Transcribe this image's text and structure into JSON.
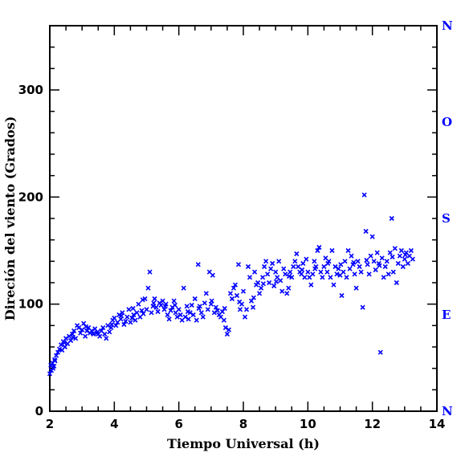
{
  "chart_data": {
    "type": "scatter",
    "title": "",
    "xlabel": "Tiempo Universal (h)",
    "ylabel": "Direción del viento (Grados)",
    "xlim": [
      2,
      14
    ],
    "ylim": [
      0,
      360
    ],
    "x_ticks": [
      2,
      4,
      6,
      8,
      10,
      12,
      14
    ],
    "y_ticks": [
      0,
      100,
      200,
      300
    ],
    "x_tick_labels": [
      "2",
      "4",
      "6",
      "8",
      "10",
      "12",
      "14"
    ],
    "y_tick_labels": [
      "0",
      "100",
      "200",
      "300"
    ],
    "right_axis_labels": [
      {
        "label": "N",
        "value": 360
      },
      {
        "label": "O",
        "value": 270
      },
      {
        "label": "S",
        "value": 180
      },
      {
        "label": "E",
        "value": 90
      },
      {
        "label": "N",
        "value": 0
      }
    ],
    "marker": "x",
    "marker_color": "#0000ff",
    "right_axis_color": "#0000ff",
    "grid": false,
    "points": [
      [
        2.0,
        35
      ],
      [
        2.03,
        43
      ],
      [
        2.05,
        38
      ],
      [
        2.08,
        45
      ],
      [
        2.1,
        40
      ],
      [
        2.13,
        42
      ],
      [
        2.16,
        47
      ],
      [
        2.2,
        52
      ],
      [
        2.25,
        55
      ],
      [
        2.3,
        58
      ],
      [
        2.35,
        62
      ],
      [
        2.38,
        57
      ],
      [
        2.42,
        65
      ],
      [
        2.47,
        60
      ],
      [
        2.5,
        68
      ],
      [
        2.55,
        63
      ],
      [
        2.6,
        70
      ],
      [
        2.65,
        66
      ],
      [
        2.7,
        72
      ],
      [
        2.75,
        75
      ],
      [
        2.8,
        68
      ],
      [
        2.85,
        80
      ],
      [
        2.9,
        78
      ],
      [
        2.95,
        73
      ],
      [
        3.0,
        76
      ],
      [
        3.05,
        82
      ],
      [
        3.1,
        70
      ],
      [
        3.15,
        75
      ],
      [
        3.2,
        78
      ],
      [
        3.25,
        73
      ],
      [
        3.3,
        75
      ],
      [
        3.35,
        72
      ],
      [
        3.4,
        77
      ],
      [
        3.45,
        73
      ],
      [
        3.5,
        72
      ],
      [
        3.55,
        70
      ],
      [
        3.6,
        75
      ],
      [
        3.65,
        78
      ],
      [
        3.7,
        72
      ],
      [
        3.75,
        68
      ],
      [
        3.8,
        80
      ],
      [
        3.85,
        74
      ],
      [
        3.9,
        78
      ],
      [
        3.95,
        85
      ],
      [
        4.0,
        87
      ],
      [
        4.05,
        80
      ],
      [
        4.1,
        83
      ],
      [
        4.15,
        90
      ],
      [
        4.2,
        86
      ],
      [
        4.25,
        92
      ],
      [
        4.3,
        81
      ],
      [
        4.35,
        84
      ],
      [
        4.4,
        88
      ],
      [
        4.45,
        95
      ],
      [
        4.5,
        83
      ],
      [
        4.55,
        87
      ],
      [
        4.6,
        90
      ],
      [
        4.65,
        85
      ],
      [
        4.7,
        92
      ],
      [
        4.75,
        100
      ],
      [
        4.8,
        88
      ],
      [
        4.85,
        94
      ],
      [
        4.9,
        91
      ],
      [
        4.95,
        105
      ],
      [
        5.0,
        95
      ],
      [
        5.05,
        115
      ],
      [
        5.1,
        130
      ],
      [
        5.15,
        92
      ],
      [
        5.2,
        98
      ],
      [
        5.25,
        105
      ],
      [
        5.3,
        97
      ],
      [
        5.35,
        93
      ],
      [
        5.4,
        101
      ],
      [
        5.45,
        99
      ],
      [
        5.5,
        103
      ],
      [
        5.55,
        95
      ],
      [
        5.6,
        100
      ],
      [
        5.65,
        90
      ],
      [
        5.7,
        86
      ],
      [
        5.75,
        94
      ],
      [
        5.8,
        97
      ],
      [
        5.85,
        103
      ],
      [
        5.9,
        92
      ],
      [
        5.95,
        88
      ],
      [
        6.0,
        95
      ],
      [
        6.05,
        90
      ],
      [
        6.1,
        85
      ],
      [
        6.15,
        115
      ],
      [
        6.2,
        88
      ],
      [
        6.25,
        98
      ],
      [
        6.3,
        86
      ],
      [
        6.35,
        92
      ],
      [
        6.4,
        99
      ],
      [
        6.45,
        90
      ],
      [
        6.5,
        105
      ],
      [
        6.55,
        85
      ],
      [
        6.6,
        137
      ],
      [
        6.65,
        98
      ],
      [
        6.7,
        92
      ],
      [
        6.75,
        88
      ],
      [
        6.8,
        101
      ],
      [
        6.85,
        110
      ],
      [
        6.9,
        95
      ],
      [
        6.95,
        130
      ],
      [
        7.0,
        100
      ],
      [
        7.05,
        127
      ],
      [
        7.1,
        92
      ],
      [
        7.15,
        97
      ],
      [
        7.2,
        94
      ],
      [
        7.25,
        90
      ],
      [
        7.3,
        88
      ],
      [
        7.35,
        93
      ],
      [
        7.4,
        85
      ],
      [
        7.45,
        78
      ],
      [
        7.5,
        72
      ],
      [
        7.55,
        76
      ],
      [
        7.6,
        110
      ],
      [
        7.65,
        105
      ],
      [
        7.7,
        115
      ],
      [
        7.75,
        118
      ],
      [
        7.8,
        108
      ],
      [
        7.85,
        137
      ],
      [
        7.9,
        95
      ],
      [
        7.95,
        100
      ],
      [
        8.0,
        112
      ],
      [
        8.05,
        88
      ],
      [
        8.1,
        95
      ],
      [
        8.15,
        135
      ],
      [
        8.2,
        125
      ],
      [
        8.25,
        103
      ],
      [
        8.3,
        97
      ],
      [
        8.35,
        130
      ],
      [
        8.4,
        118
      ],
      [
        8.45,
        120
      ],
      [
        8.5,
        110
      ],
      [
        8.55,
        115
      ],
      [
        8.6,
        125
      ],
      [
        8.65,
        135
      ],
      [
        8.7,
        140
      ],
      [
        8.75,
        128
      ],
      [
        8.8,
        120
      ],
      [
        8.85,
        133
      ],
      [
        8.9,
        138
      ],
      [
        8.95,
        117
      ],
      [
        9.0,
        130
      ],
      [
        9.05,
        125
      ],
      [
        9.1,
        140
      ],
      [
        9.15,
        122
      ],
      [
        9.2,
        112
      ],
      [
        9.25,
        133
      ],
      [
        9.3,
        128
      ],
      [
        9.35,
        110
      ],
      [
        9.4,
        115
      ],
      [
        9.45,
        130
      ],
      [
        9.5,
        125
      ],
      [
        9.55,
        135
      ],
      [
        9.6,
        140
      ],
      [
        9.65,
        147
      ],
      [
        9.7,
        135
      ],
      [
        9.75,
        130
      ],
      [
        9.8,
        128
      ],
      [
        9.85,
        138
      ],
      [
        9.9,
        125
      ],
      [
        9.95,
        142
      ],
      [
        10.0,
        130
      ],
      [
        10.05,
        125
      ],
      [
        10.1,
        118
      ],
      [
        10.15,
        128
      ],
      [
        10.2,
        140
      ],
      [
        10.25,
        135
      ],
      [
        10.3,
        150
      ],
      [
        10.35,
        153
      ],
      [
        10.4,
        130
      ],
      [
        10.45,
        125
      ],
      [
        10.5,
        135
      ],
      [
        10.55,
        143
      ],
      [
        10.6,
        130
      ],
      [
        10.65,
        140
      ],
      [
        10.7,
        125
      ],
      [
        10.75,
        150
      ],
      [
        10.8,
        118
      ],
      [
        10.85,
        135
      ],
      [
        10.9,
        128
      ],
      [
        10.95,
        133
      ],
      [
        11.0,
        127
      ],
      [
        11.05,
        108
      ],
      [
        11.1,
        130
      ],
      [
        11.15,
        140
      ],
      [
        11.2,
        125
      ],
      [
        11.25,
        150
      ],
      [
        11.3,
        133
      ],
      [
        11.35,
        145
      ],
      [
        11.4,
        137
      ],
      [
        11.45,
        128
      ],
      [
        11.5,
        115
      ],
      [
        11.55,
        140
      ],
      [
        11.6,
        135
      ],
      [
        11.65,
        130
      ],
      [
        11.7,
        97
      ],
      [
        11.75,
        202
      ],
      [
        11.8,
        168
      ],
      [
        11.85,
        137
      ],
      [
        11.9,
        128
      ],
      [
        11.95,
        145
      ],
      [
        12.0,
        163
      ],
      [
        12.05,
        140
      ],
      [
        12.1,
        132
      ],
      [
        12.15,
        148
      ],
      [
        12.2,
        138
      ],
      [
        12.25,
        55
      ],
      [
        12.3,
        143
      ],
      [
        12.35,
        125
      ],
      [
        12.4,
        135
      ],
      [
        12.45,
        140
      ],
      [
        12.5,
        128
      ],
      [
        12.55,
        148
      ],
      [
        12.6,
        180
      ],
      [
        12.65,
        130
      ],
      [
        12.7,
        152
      ],
      [
        12.75,
        120
      ],
      [
        12.8,
        138
      ],
      [
        12.85,
        145
      ],
      [
        12.9,
        150
      ],
      [
        12.95,
        135
      ],
      [
        13.0,
        142
      ],
      [
        13.05,
        148
      ],
      [
        13.1,
        138
      ],
      [
        13.15,
        145
      ],
      [
        13.2,
        150
      ],
      [
        13.25,
        142
      ],
      [
        2.15,
        48
      ],
      [
        2.45,
        64
      ],
      [
        2.72,
        69
      ],
      [
        3.12,
        79
      ],
      [
        3.48,
        74
      ],
      [
        3.92,
        81
      ],
      [
        4.22,
        89
      ],
      [
        4.58,
        96
      ],
      [
        4.88,
        104
      ],
      [
        5.22,
        101
      ],
      [
        5.58,
        98
      ],
      [
        5.88,
        99
      ],
      [
        6.28,
        93
      ],
      [
        6.62,
        96
      ],
      [
        7.02,
        103
      ],
      [
        7.42,
        96
      ],
      [
        7.88,
        102
      ],
      [
        8.32,
        106
      ],
      [
        8.62,
        119
      ],
      [
        9.02,
        121
      ],
      [
        9.42,
        126
      ],
      [
        9.82,
        132
      ],
      [
        10.22,
        133
      ],
      [
        10.62,
        138
      ],
      [
        11.02,
        137
      ],
      [
        11.42,
        139
      ],
      [
        11.82,
        141
      ],
      [
        12.22,
        136
      ],
      [
        12.62,
        144
      ],
      [
        13.02,
        146
      ]
    ]
  }
}
